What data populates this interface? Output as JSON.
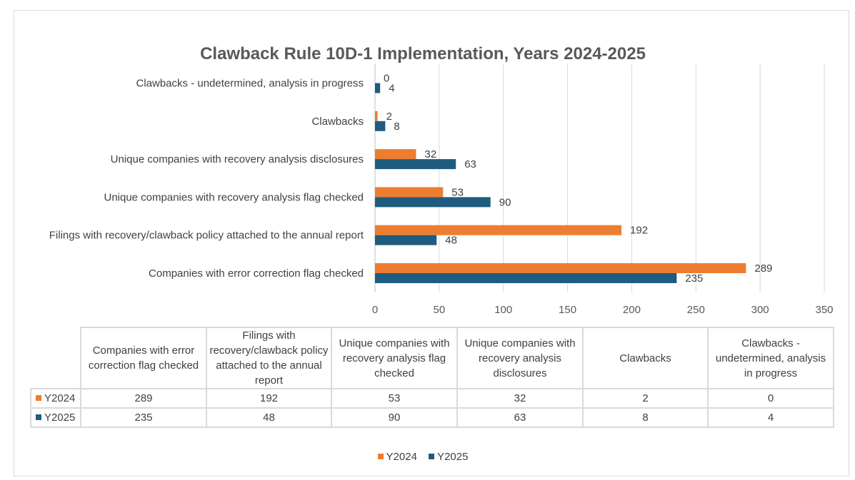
{
  "chart_data": {
    "type": "bar",
    "orientation": "horizontal",
    "title": "Clawback Rule 10D-1 Implementation, Years 2024-2025",
    "categories": [
      "Companies with error correction flag checked",
      "Filings with recovery/clawback policy attached to the annual report",
      "Unique companies with recovery analysis flag checked",
      "Unique companies with recovery analysis disclosures",
      "Clawbacks",
      "Clawbacks - undetermined, analysis in progress"
    ],
    "table_headers": [
      "Companies with error correction flag checked",
      "Filings with recovery/clawback policy attached to the annual report",
      "Unique companies with recovery analysis flag checked",
      "Unique companies with recovery analysis disclosures",
      "Clawbacks",
      "Clawbacks - undetermined, analysis in progress"
    ],
    "series": [
      {
        "name": "Y2024",
        "color": "#ed7d31",
        "values": [
          289,
          192,
          53,
          32,
          2,
          0
        ]
      },
      {
        "name": "Y2025",
        "color": "#1f5c7f",
        "values": [
          235,
          48,
          90,
          63,
          8,
          4
        ]
      }
    ],
    "xlim": [
      0,
      350
    ],
    "xticks": [
      0,
      50,
      100,
      150,
      200,
      250,
      300,
      350
    ],
    "grid": true,
    "legend_position": "bottom"
  }
}
